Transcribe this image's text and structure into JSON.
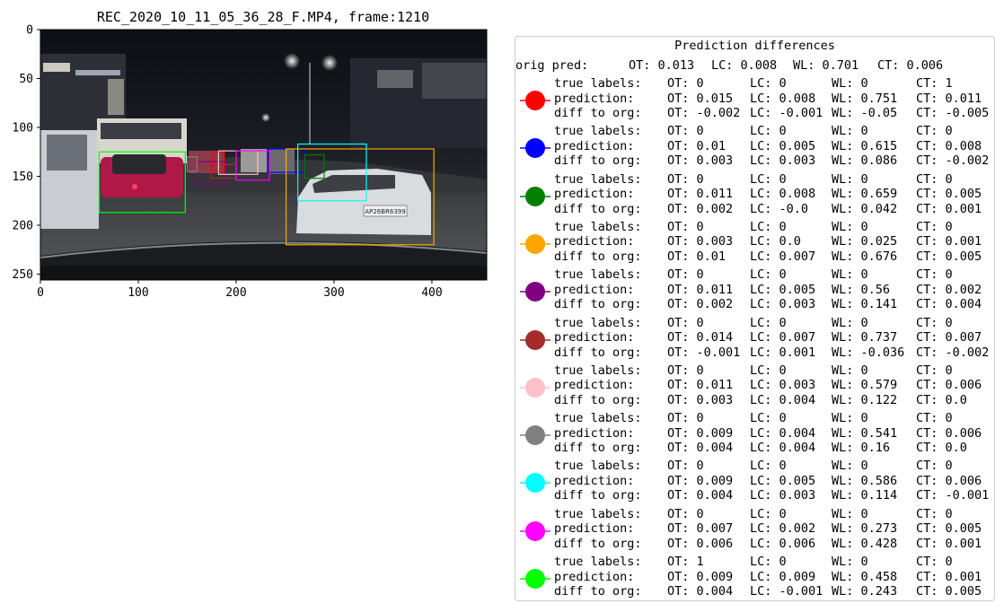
{
  "chart_data": {
    "type": "image_with_boxes",
    "title": "REC_2020_10_11_05_36_28_F.MP4, frame:1210",
    "xlim": [
      0,
      456
    ],
    "ylim": [
      256,
      0
    ],
    "xticks": [
      0,
      100,
      200,
      300,
      400
    ],
    "yticks": [
      0,
      50,
      100,
      150,
      200,
      250
    ],
    "boxes": [
      {
        "color": "#ff0000",
        "x0": 176,
        "y0": 125,
        "x1": 188,
        "y1": 145
      },
      {
        "color": "#0000ff",
        "x0": 232,
        "y0": 122,
        "x1": 270,
        "y1": 146
      },
      {
        "color": "#008000",
        "x0": 270,
        "y0": 128,
        "x1": 290,
        "y1": 152
      },
      {
        "color": "#ffa500",
        "x0": 251,
        "y0": 122,
        "x1": 402,
        "y1": 220
      },
      {
        "color": "#800080",
        "x0": 160,
        "y0": 135,
        "x1": 190,
        "y1": 158
      },
      {
        "color": "#a52a2a",
        "x0": 174,
        "y0": 138,
        "x1": 200,
        "y1": 152
      },
      {
        "color": "#ffc0cb",
        "x0": 182,
        "y0": 124,
        "x1": 222,
        "y1": 148
      },
      {
        "color": "#808080",
        "x0": 150,
        "y0": 130,
        "x1": 160,
        "y1": 145
      },
      {
        "color": "#00ffff",
        "x0": 263,
        "y0": 117,
        "x1": 333,
        "y1": 175
      },
      {
        "color": "#ff00ff",
        "x0": 200,
        "y0": 124,
        "x1": 234,
        "y1": 154
      },
      {
        "color": "#00ff00",
        "x0": 60,
        "y0": 125,
        "x1": 148,
        "y1": 187
      }
    ],
    "legend": {
      "title": "Prediction differences",
      "orig_pred": {
        "label": "orig pred:",
        "OT": "0.013",
        "LC": "0.008",
        "WL": "0.701",
        "CT": "0.006"
      },
      "entries": [
        {
          "color": "#ff0000",
          "true": [
            "0",
            "0",
            "0",
            "1"
          ],
          "pred": [
            "0.015",
            "0.008",
            "0.751",
            "0.011"
          ],
          "diff": [
            "-0.002",
            "-0.001",
            "-0.05",
            "-0.005"
          ]
        },
        {
          "color": "#0000ff",
          "true": [
            "0",
            "0",
            "0",
            "0"
          ],
          "pred": [
            "0.01",
            "0.005",
            "0.615",
            "0.008"
          ],
          "diff": [
            "0.003",
            "0.003",
            "0.086",
            "-0.002"
          ]
        },
        {
          "color": "#008000",
          "true": [
            "0",
            "0",
            "0",
            "0"
          ],
          "pred": [
            "0.011",
            "0.008",
            "0.659",
            "0.005"
          ],
          "diff": [
            "0.002",
            "-0.0",
            "0.042",
            "0.001"
          ]
        },
        {
          "color": "#ffa500",
          "true": [
            "0",
            "0",
            "0",
            "0"
          ],
          "pred": [
            "0.003",
            "0.0",
            "0.025",
            "0.001"
          ],
          "diff": [
            "0.01",
            "0.007",
            "0.676",
            "0.005"
          ]
        },
        {
          "color": "#800080",
          "true": [
            "0",
            "0",
            "0",
            "0"
          ],
          "pred": [
            "0.011",
            "0.005",
            "0.56",
            "0.002"
          ],
          "diff": [
            "0.002",
            "0.003",
            "0.141",
            "0.004"
          ]
        },
        {
          "color": "#a52a2a",
          "true": [
            "0",
            "0",
            "0",
            "0"
          ],
          "pred": [
            "0.014",
            "0.007",
            "0.737",
            "0.007"
          ],
          "diff": [
            "-0.001",
            "0.001",
            "-0.036",
            "-0.002"
          ]
        },
        {
          "color": "#ffc0cb",
          "true": [
            "0",
            "0",
            "0",
            "0"
          ],
          "pred": [
            "0.011",
            "0.003",
            "0.579",
            "0.006"
          ],
          "diff": [
            "0.003",
            "0.004",
            "0.122",
            "0.0"
          ]
        },
        {
          "color": "#808080",
          "true": [
            "0",
            "0",
            "0",
            "0"
          ],
          "pred": [
            "0.009",
            "0.004",
            "0.541",
            "0.006"
          ],
          "diff": [
            "0.004",
            "0.004",
            "0.16",
            "0.0"
          ]
        },
        {
          "color": "#00ffff",
          "true": [
            "0",
            "0",
            "0",
            "0"
          ],
          "pred": [
            "0.009",
            "0.005",
            "0.586",
            "0.006"
          ],
          "diff": [
            "0.004",
            "0.003",
            "0.114",
            "-0.001"
          ]
        },
        {
          "color": "#ff00ff",
          "true": [
            "0",
            "0",
            "0",
            "0"
          ],
          "pred": [
            "0.007",
            "0.002",
            "0.273",
            "0.005"
          ],
          "diff": [
            "0.006",
            "0.006",
            "0.428",
            "0.001"
          ]
        },
        {
          "color": "#00ff00",
          "true": [
            "1",
            "0",
            "0",
            "0"
          ],
          "pred": [
            "0.009",
            "0.009",
            "0.458",
            "0.001"
          ],
          "diff": [
            "0.004",
            "-0.001",
            "0.243",
            "0.005"
          ]
        }
      ],
      "row_labels": {
        "true": "true labels:",
        "pred": "prediction:",
        "diff": "diff to org:"
      },
      "col_names": [
        "OT",
        "LC",
        "WL",
        "CT"
      ]
    },
    "image_text": {
      "plate": "AP26BR6399"
    }
  }
}
